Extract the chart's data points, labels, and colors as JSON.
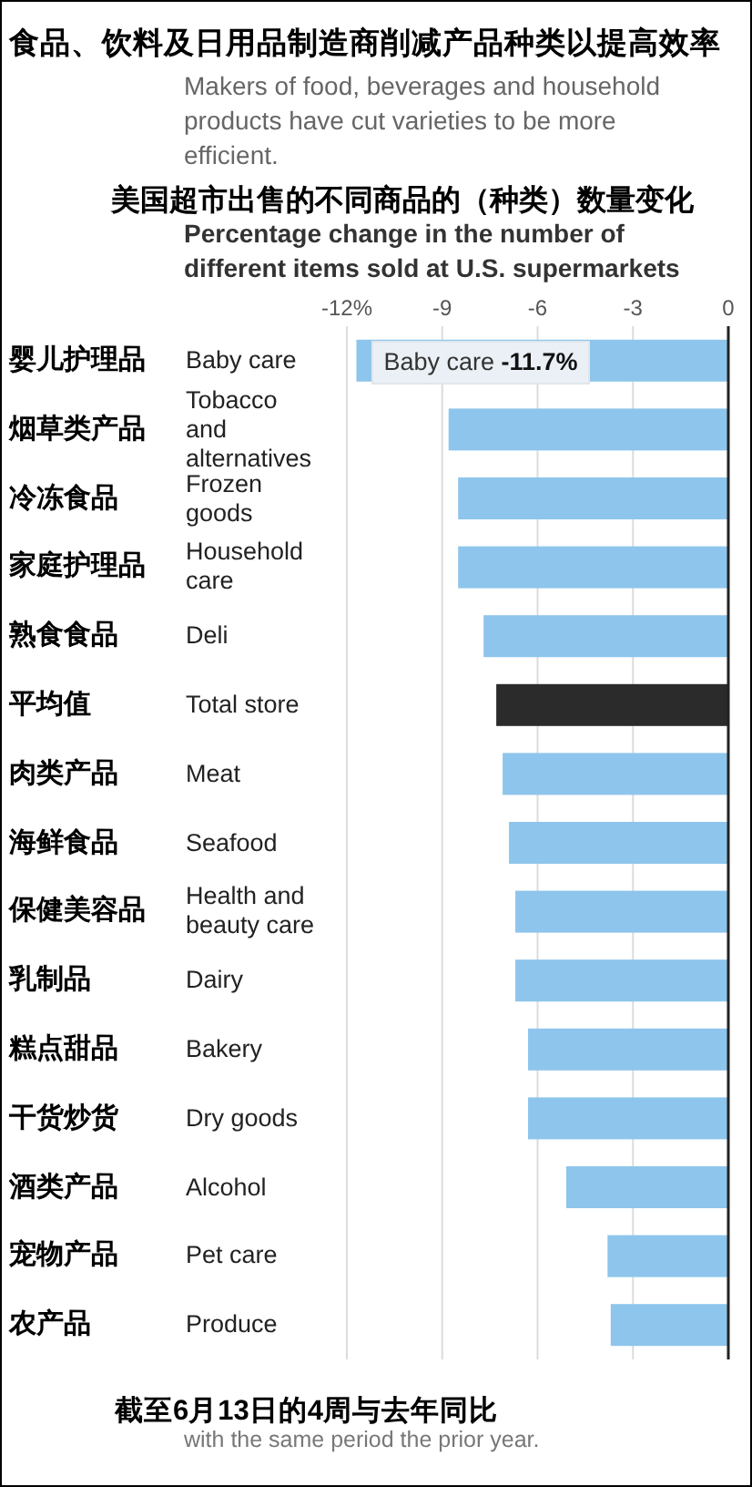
{
  "chart_data": {
    "type": "bar",
    "orientation": "horizontal",
    "title": "食品、饮料及日用品制造商削减产品种类以提高效率",
    "subtitle": "Makers of food, beverages and household products have cut varieties to be more efficient.",
    "categories": [
      "婴儿护理品 Baby care",
      "烟草类产品 Tobacco and alternatives",
      "冷冻食品 Frozen goods",
      "家庭护理品 Household care",
      "熟食食品 Deli",
      "平均值 Total store",
      "肉类产品 Meat",
      "海鲜食品 Seafood",
      "保健美容品 Health and beauty care",
      "乳制品 Dairy",
      "糕点甜品 Bakery",
      "干货炒货 Dry goods",
      "酒类产品 Alcohol",
      "宠物产品 Pet care",
      "农产品 Produce"
    ],
    "values": [
      -11.7,
      -8.8,
      -8.5,
      -8.5,
      -7.7,
      -7.3,
      -7.1,
      -6.9,
      -6.7,
      -6.7,
      -6.3,
      -6.3,
      -5.1,
      -3.8,
      -3.7
    ],
    "colors": [
      "#8ec5ec",
      "#8ec5ec",
      "#8ec5ec",
      "#8ec5ec",
      "#8ec5ec",
      "#2b2b2b",
      "#8ec5ec",
      "#8ec5ec",
      "#8ec5ec",
      "#8ec5ec",
      "#8ec5ec",
      "#8ec5ec",
      "#8ec5ec",
      "#8ec5ec",
      "#8ec5ec"
    ],
    "xlim": [
      -12,
      0
    ],
    "xticks": [
      {
        "value": -12,
        "label": "-12%"
      },
      -9,
      -6,
      -3,
      0
    ],
    "grid": "x",
    "annotations": [
      "美国超市出售的不同商品的（种类）数量变化",
      "Percentage change in the number of different items sold at U.S. supermarkets",
      {
        "text": "Baby care -11.7%",
        "x": -11.7,
        "y": "婴儿护理品 Baby care"
      },
      "截至6月13日的4周与去年同比",
      "with the same period the prior year."
    ]
  }
}
